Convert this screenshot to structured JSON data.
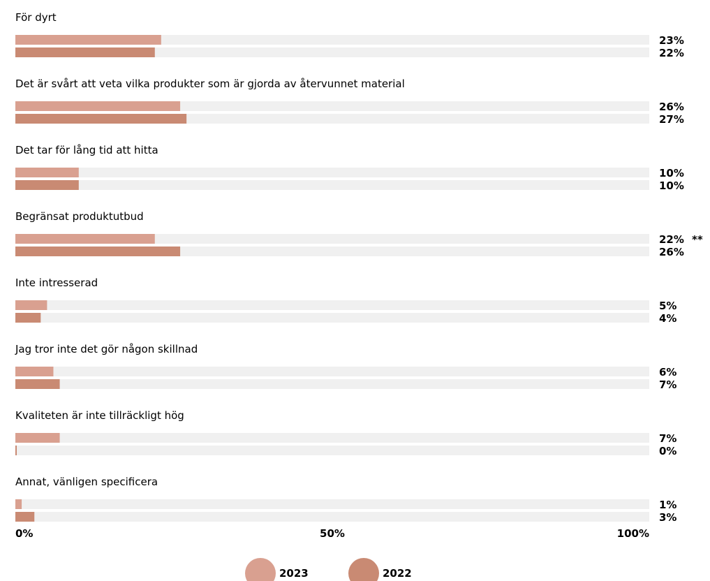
{
  "chart_data": {
    "type": "bar",
    "orientation": "horizontal",
    "categories": [
      "För dyrt",
      "Det är svårt att veta vilka produkter som är gjorda av återvunnet material",
      "Det tar för lång tid att hitta",
      "Begränsat produktutbud",
      "Inte intresserad",
      "Jag tror inte det gör någon skillnad",
      "Kvaliteten är inte tillräckligt hög",
      "Annat, vänligen specificera"
    ],
    "series": [
      {
        "name": "2023",
        "color": "#d9a090",
        "values": [
          23,
          26,
          10,
          22,
          5,
          6,
          7,
          1
        ],
        "labels": [
          "23%",
          "26%",
          "10%",
          "22%",
          "5%",
          "6%",
          "7%",
          "1%"
        ]
      },
      {
        "name": "2022",
        "color": "#c98a73",
        "values": [
          22,
          27,
          10,
          26,
          4,
          7,
          0,
          3
        ],
        "labels": [
          "22%",
          "27%",
          "10%",
          "26%",
          "4%",
          "7%",
          "0%",
          "3%"
        ]
      }
    ],
    "annotations": [
      {
        "category_index": 3,
        "text": "**"
      }
    ],
    "xlim": [
      0,
      100
    ],
    "x_ticks": [
      "0%",
      "50%",
      "100%"
    ],
    "track_color": "#f0f0f0",
    "legend_position": "bottom-center",
    "grid": false
  }
}
